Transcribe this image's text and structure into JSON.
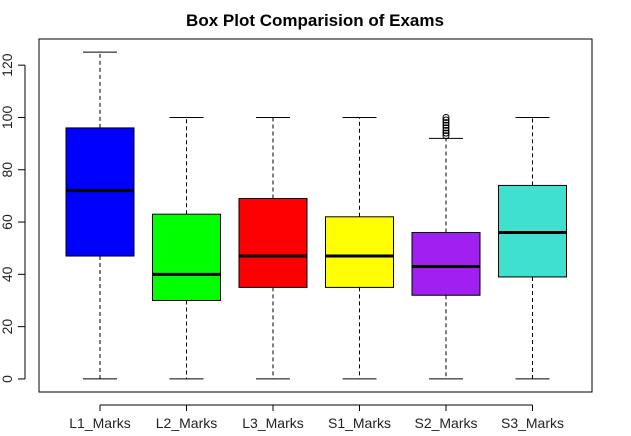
{
  "chart_data": {
    "type": "boxplot",
    "title": "Box Plot Comparision of Exams",
    "xlabel": "",
    "ylabel": "",
    "ylim": [
      -5,
      130
    ],
    "yticks": [
      0,
      20,
      40,
      60,
      80,
      100,
      120
    ],
    "grid": false,
    "categories": [
      "L1_Marks",
      "L2_Marks",
      "L3_Marks",
      "S1_Marks",
      "S2_Marks",
      "S3_Marks"
    ],
    "series": [
      {
        "whisker_low": 0,
        "q1": 47,
        "median": 72,
        "q3": 96,
        "whisker_high": 125,
        "outliers": [],
        "color": "#0000ff"
      },
      {
        "whisker_low": 0,
        "q1": 30,
        "median": 40,
        "q3": 63,
        "whisker_high": 100,
        "outliers": [],
        "color": "#00ff00"
      },
      {
        "whisker_low": 0,
        "q1": 35,
        "median": 47,
        "q3": 69,
        "whisker_high": 100,
        "outliers": [],
        "color": "#ff0000"
      },
      {
        "whisker_low": 0,
        "q1": 35,
        "median": 47,
        "q3": 62,
        "whisker_high": 100,
        "outliers": [],
        "color": "#ffff00"
      },
      {
        "whisker_low": 0,
        "q1": 32,
        "median": 43,
        "q3": 56,
        "whisker_high": 92,
        "outliers": [
          93,
          94,
          95,
          96,
          97,
          98,
          99,
          100
        ],
        "color": "#a020f0"
      },
      {
        "whisker_low": 0,
        "q1": 39,
        "median": 56,
        "q3": 74,
        "whisker_high": 100,
        "outliers": [],
        "color": "#40e0d0"
      }
    ]
  }
}
